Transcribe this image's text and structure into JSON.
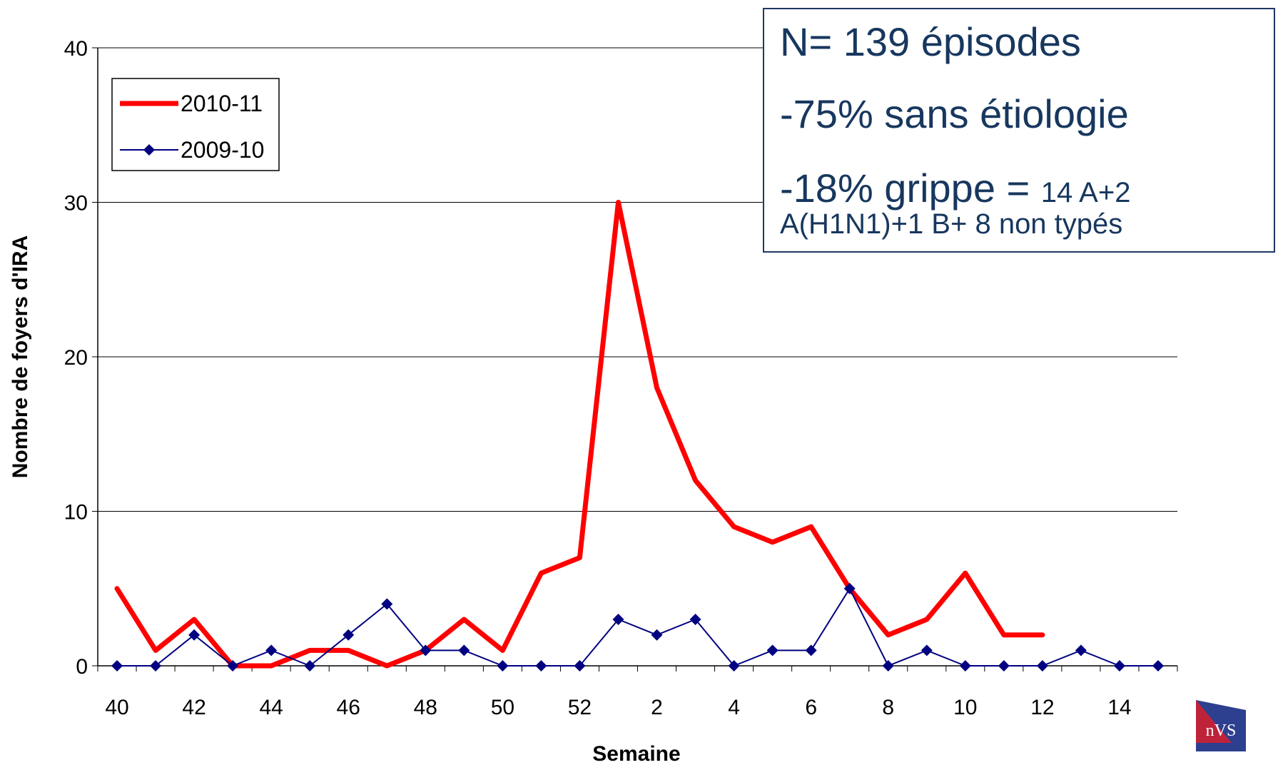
{
  "chart_data": {
    "type": "line",
    "xlabel": "Semaine",
    "ylabel": "Nombre de foyers d'IRA",
    "ylim": [
      0,
      40
    ],
    "yticks": [
      0,
      10,
      20,
      30,
      40
    ],
    "grid": true,
    "categories": [
      "40",
      "41",
      "42",
      "43",
      "44",
      "45",
      "46",
      "47",
      "48",
      "49",
      "50",
      "51",
      "52",
      "1",
      "2",
      "3",
      "4",
      "5",
      "6",
      "7",
      "8",
      "9",
      "10",
      "11",
      "12",
      "13",
      "14",
      "15"
    ],
    "xtick_labels": [
      "40",
      "",
      "42",
      "",
      "44",
      "",
      "46",
      "",
      "48",
      "",
      "50",
      "",
      "52",
      "",
      "2",
      "",
      "4",
      "",
      "6",
      "",
      "8",
      "",
      "10",
      "",
      "12",
      "",
      "14",
      ""
    ],
    "legend_position": "top-left",
    "series": [
      {
        "name": "2010-11",
        "color": "#ff0000",
        "marker": "none",
        "values": [
          5,
          1,
          3,
          0,
          0,
          1,
          1,
          0,
          1,
          3,
          1,
          6,
          7,
          30,
          18,
          12,
          9,
          8,
          9,
          5,
          2,
          3,
          6,
          2,
          2,
          null,
          null,
          null
        ]
      },
      {
        "name": "2009-10",
        "color": "#000080",
        "marker": "diamond",
        "values": [
          0,
          0,
          2,
          0,
          1,
          0,
          2,
          4,
          1,
          1,
          0,
          0,
          0,
          3,
          2,
          3,
          0,
          1,
          1,
          5,
          0,
          1,
          0,
          0,
          0,
          1,
          0,
          0
        ]
      }
    ]
  },
  "info_box": {
    "line1": "N= 139 épisodes",
    "line2": "-75% sans étiologie",
    "line3_main": "-18% grippe = ",
    "line3_small": "14 A+2",
    "line4": "A(H1N1)+1 B+ 8 non typés"
  },
  "logo": {
    "text": "nVS"
  }
}
